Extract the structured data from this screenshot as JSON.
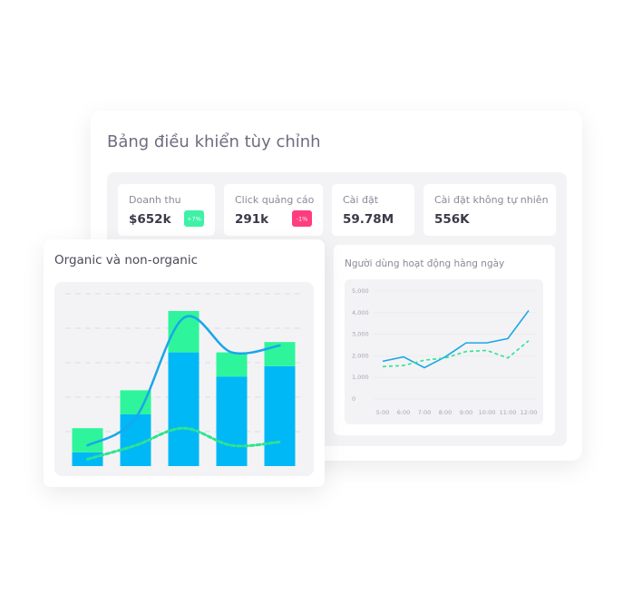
{
  "header": {
    "title": "Bảng điều khiển tùy chỉnh"
  },
  "kpis": [
    {
      "label": "Doanh thu",
      "value": "$652k",
      "badge": "+7%"
    },
    {
      "label": "Click quảng cáo",
      "value": "291k",
      "badge": "-1%"
    },
    {
      "label": "Cài đặt",
      "value": "59.78M"
    },
    {
      "label": "Cài đặt không tự nhiên",
      "value": "556K"
    }
  ],
  "chart_data": [
    {
      "type": "combo",
      "title": "Organic và non-organic",
      "categories": [
        null,
        null,
        null,
        null,
        null
      ],
      "ylim": [
        0,
        5
      ],
      "yticks": [
        1,
        2,
        3,
        4,
        5
      ],
      "grid": true,
      "series": [
        {
          "kind": "bar",
          "color": "#00b8f5",
          "values": [
            0.4,
            1.5,
            3.3,
            2.6,
            2.9
          ]
        },
        {
          "kind": "bar",
          "color": "#2ef59b",
          "values": [
            0.7,
            0.7,
            1.2,
            0.7,
            0.7
          ]
        },
        {
          "kind": "line",
          "color": "#1aa6ea",
          "values": [
            0.6,
            1.4,
            4.3,
            3.3,
            3.5
          ]
        },
        {
          "kind": "dashed",
          "color": "#2ee392",
          "values": [
            0.2,
            0.6,
            1.1,
            0.6,
            0.7
          ]
        }
      ]
    },
    {
      "type": "line",
      "title": "Người dùng hoạt động hàng ngày",
      "categories": [
        "5:00",
        "6:00",
        "7:00",
        "8:00",
        "9:00",
        "10:00",
        "11:00",
        "12:00"
      ],
      "ylim": [
        0,
        5000
      ],
      "yticks": [
        0,
        {
          "value": 1000,
          "label": "1,000"
        },
        {
          "value": 2000,
          "label": "2,000"
        },
        {
          "value": 3000,
          "label": "3,000"
        },
        {
          "value": 4000,
          "label": "4,000"
        },
        {
          "value": 5000,
          "label": "5,000"
        }
      ],
      "grid": true,
      "series": [
        {
          "kind": "line",
          "color": "#1aa6ea",
          "values": [
            1750,
            1950,
            1450,
            1950,
            2600,
            2600,
            2800,
            4100
          ]
        },
        {
          "kind": "dashed",
          "color": "#2ee392",
          "values": [
            1500,
            1550,
            1800,
            1900,
            2200,
            2250,
            1900,
            2700
          ]
        }
      ]
    }
  ]
}
